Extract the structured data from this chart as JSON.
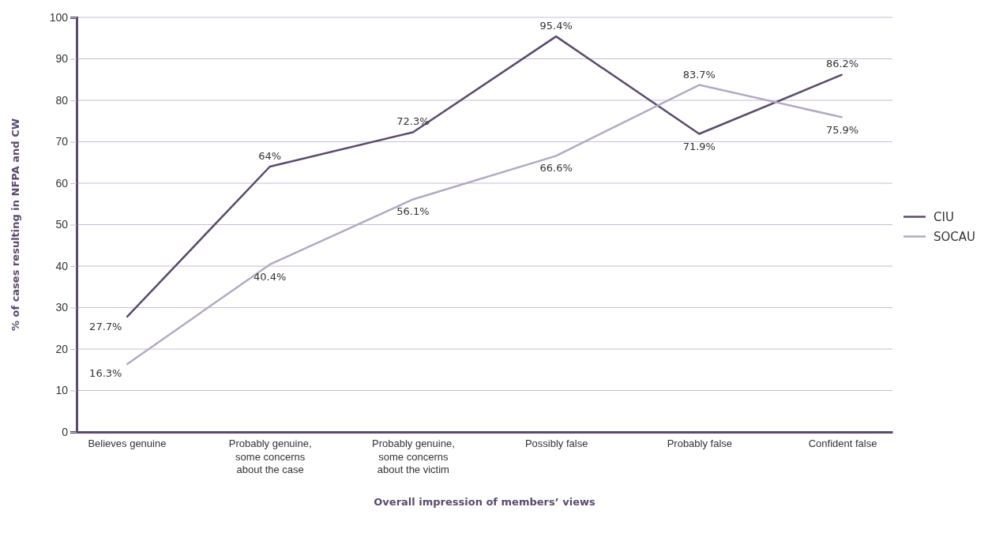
{
  "chart_data": {
    "type": "line",
    "xlabel": "Overall impression of members’ views",
    "ylabel": "% of cases resulting in NFPA and CW",
    "categories": [
      "Believes genuine",
      "Probably genuine, some concerns about the case",
      "Probably genuine, some concerns about the victim",
      "Possibly false",
      "Probably false",
      "Confident false"
    ],
    "series": [
      {
        "name": "CIU",
        "color": "#5b4a6e",
        "values": [
          27.7,
          64,
          72.3,
          95.4,
          71.9,
          86.2
        ],
        "value_labels": [
          "27.7%",
          "64%",
          "72.3%",
          "95.4%",
          "71.9%",
          "86.2%"
        ]
      },
      {
        "name": "SOCAU",
        "color": "#b3a9c4",
        "values": [
          16.3,
          40.4,
          56.1,
          66.6,
          83.7,
          75.9
        ],
        "value_labels": [
          "16.3%",
          "40.4%",
          "56.1%",
          "66.6%",
          "83.7%",
          "75.9%"
        ]
      }
    ],
    "ylim": [
      0,
      100
    ],
    "yticks": [
      0,
      10,
      20,
      30,
      40,
      50,
      60,
      70,
      80,
      90,
      100
    ],
    "grid": "y",
    "legend": "right",
    "marker": "none",
    "line_style": "solid"
  }
}
